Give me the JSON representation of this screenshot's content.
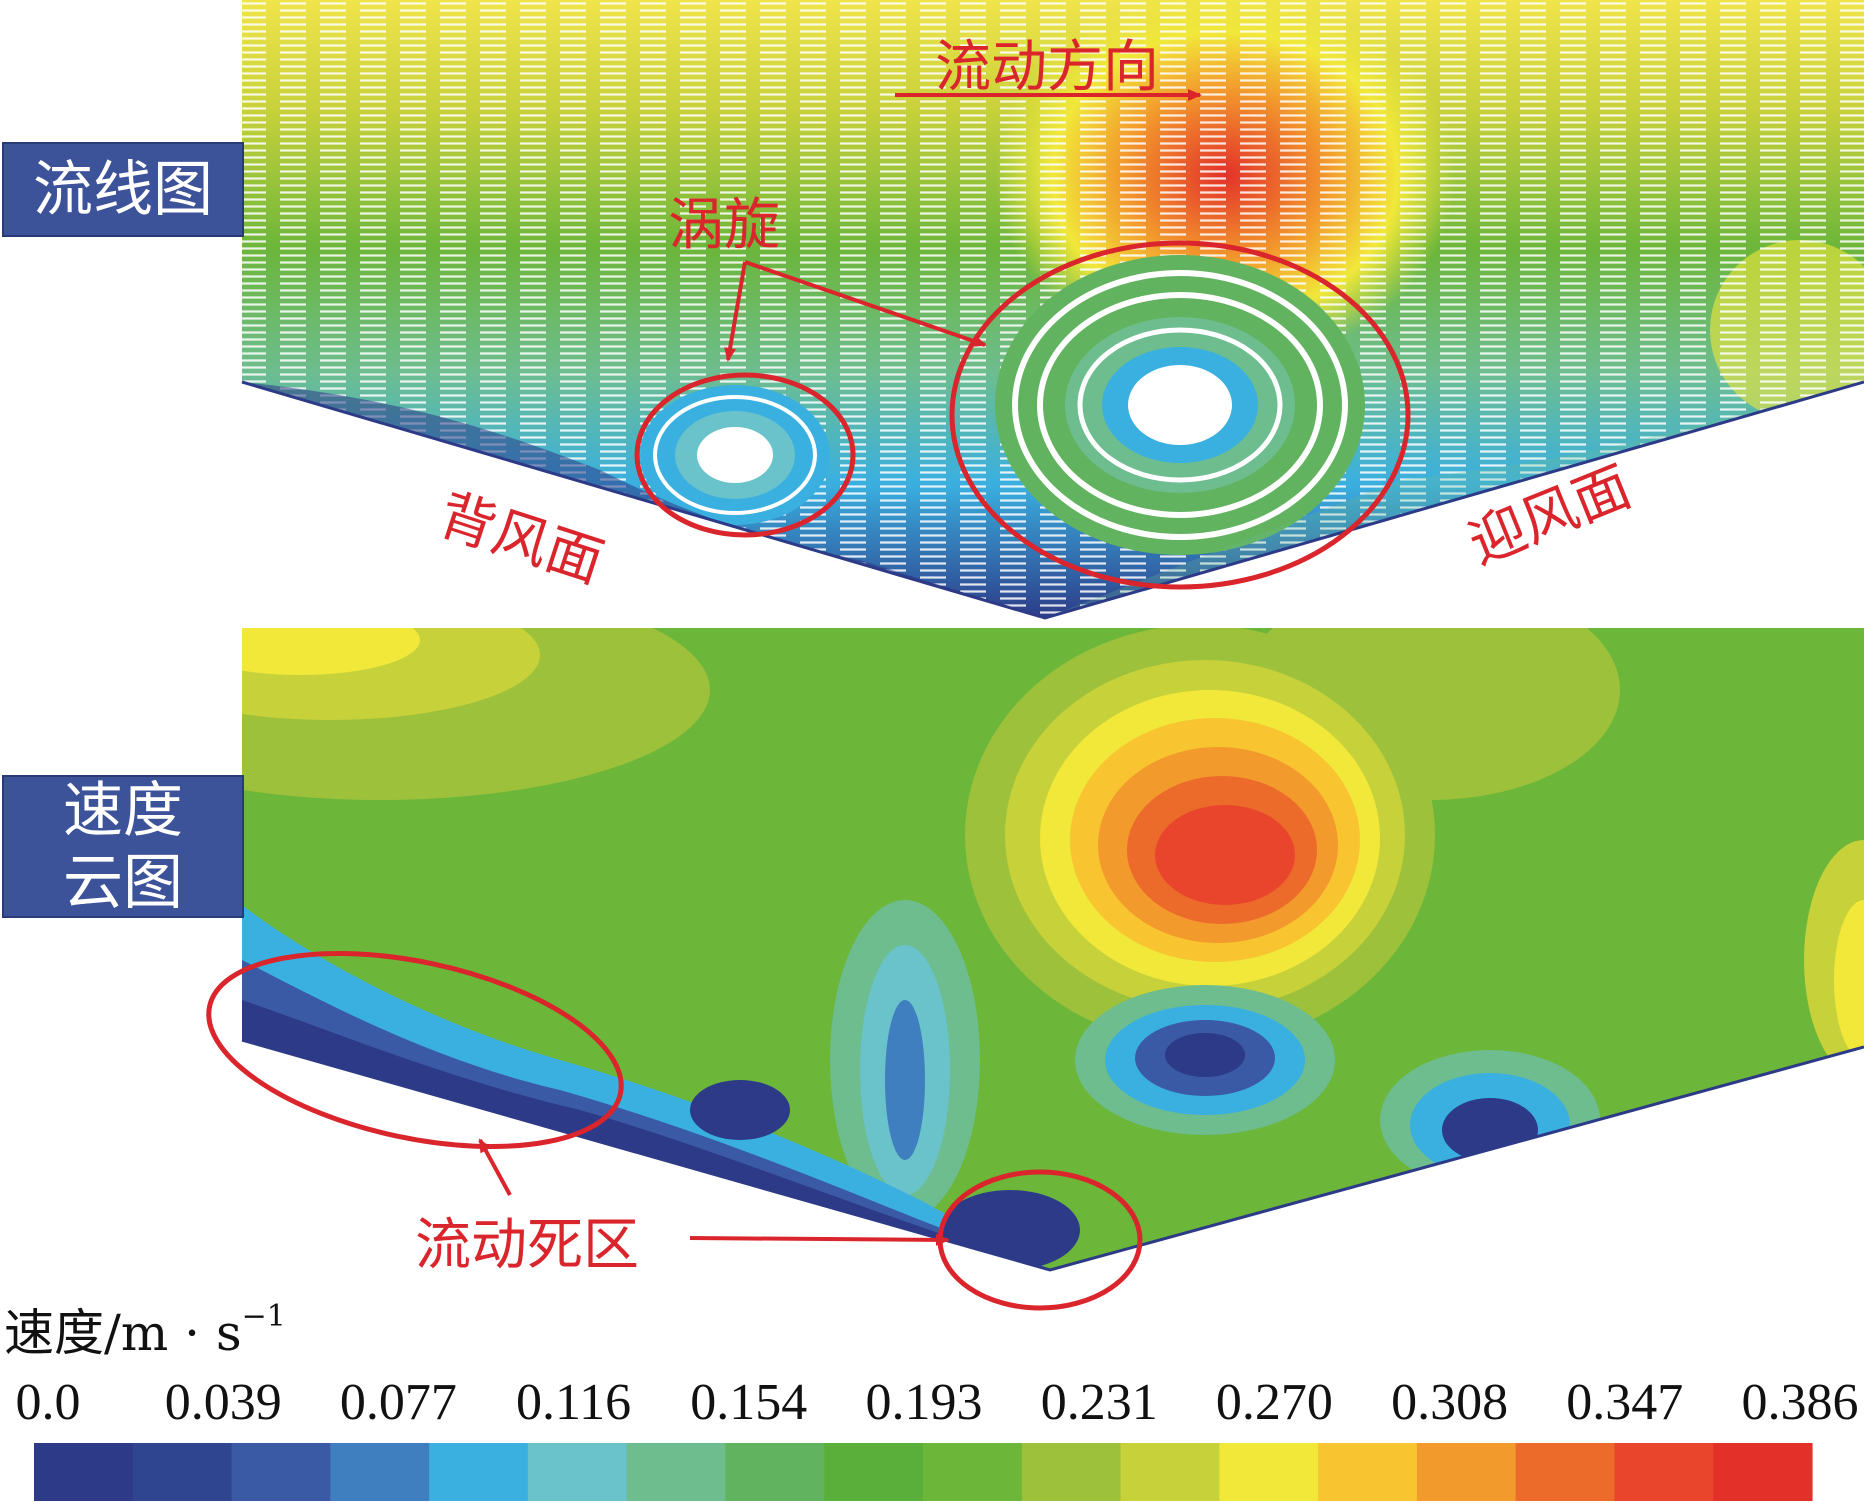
{
  "labels": {
    "streamline_panel": "流线图",
    "contour_panel_line1": "速度",
    "contour_panel_line2": "云图"
  },
  "annotations": {
    "flow_direction": "流动方向",
    "vortex": "涡旋",
    "leeward": "背风面",
    "windward": "迎风面",
    "dead_zone": "流动死区"
  },
  "legend": {
    "unit_text": "速度/m · s",
    "unit_exponent": "−1",
    "ticks": [
      "0.0",
      "0.039",
      "0.077",
      "0.116",
      "0.154",
      "0.193",
      "0.231",
      "0.270",
      "0.308",
      "0.347",
      "0.386"
    ],
    "colors": [
      "#2c3a87",
      "#2f4590",
      "#3a5aa6",
      "#3f7fc0",
      "#3ab0e0",
      "#6ac2cb",
      "#6dbd8f",
      "#62b35f",
      "#5aae3a",
      "#6cb63a",
      "#9ec13b",
      "#c7d13a",
      "#f1e83a",
      "#f8c531",
      "#f39a2c",
      "#ec6b2b",
      "#e8452c",
      "#e3312a"
    ]
  },
  "colors": {
    "annotation_red": "#d9252b",
    "panel_blue": "#3c5299"
  }
}
